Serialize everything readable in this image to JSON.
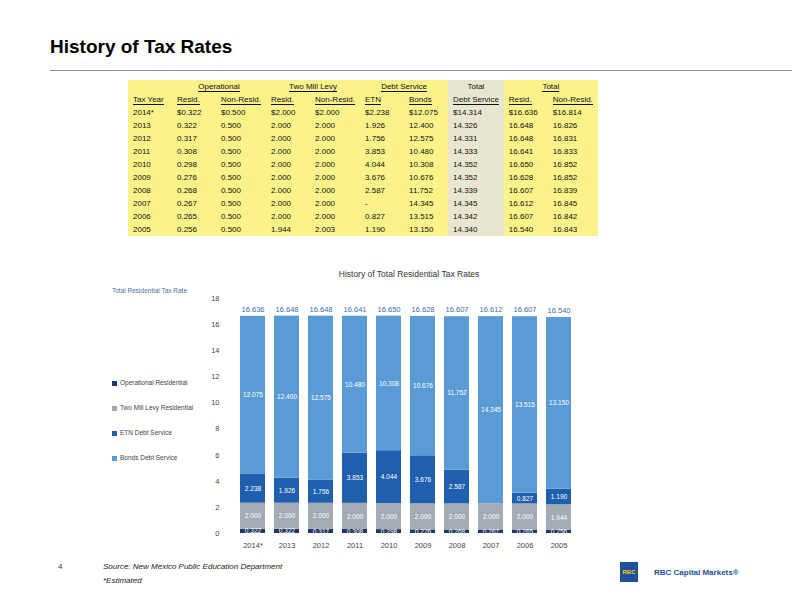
{
  "title": "History of Tax Rates",
  "table": {
    "header_groups": [
      {
        "label": null,
        "span": 1
      },
      {
        "label": "Operational",
        "span": 2
      },
      {
        "label": "Two Mill Levy",
        "span": 2
      },
      {
        "label": "Debt Service",
        "span": 2
      },
      {
        "label": "Total",
        "span": 1
      },
      {
        "label": "Total",
        "span": 2
      }
    ],
    "columns": [
      "Tax Year",
      "Resid.",
      "Non-Resid.",
      "Resid.",
      "Non-Resid.",
      "ETN",
      "Bonds",
      "Debt Service",
      "Resid.",
      "Non-Resid."
    ],
    "rows": [
      [
        "2014*",
        "$0.322",
        "$0.500",
        "$2.000",
        "$2.000",
        "$2.238",
        "$12.075",
        "$14.314",
        "$16.636",
        "$16.814"
      ],
      [
        "2013",
        "0.322",
        "0.500",
        "2.000",
        "2.000",
        "1.926",
        "12.400",
        "14.326",
        "16.648",
        "16.826"
      ],
      [
        "2012",
        "0.317",
        "0.500",
        "2.000",
        "2.000",
        "1.756",
        "12.575",
        "14.331",
        "16.648",
        "16.831"
      ],
      [
        "2011",
        "0.308",
        "0.500",
        "2.000",
        "2.000",
        "3.853",
        "10.480",
        "14.333",
        "16.641",
        "16.833"
      ],
      [
        "2010",
        "0.298",
        "0.500",
        "2.000",
        "2.000",
        "4.044",
        "10.308",
        "14.352",
        "16.650",
        "16.852"
      ],
      [
        "2009",
        "0.276",
        "0.500",
        "2.000",
        "2.000",
        "3.676",
        "10.676",
        "14.352",
        "16.628",
        "16.852"
      ],
      [
        "2008",
        "0.268",
        "0.500",
        "2.000",
        "2.000",
        "2.587",
        "11.752",
        "14.339",
        "16.607",
        "16.839"
      ],
      [
        "2007",
        "0.267",
        "0.500",
        "2.000",
        "2.000",
        "-",
        "14.345",
        "14.345",
        "16.612",
        "16.845"
      ],
      [
        "2006",
        "0.265",
        "0.500",
        "2.000",
        "2.000",
        "0.827",
        "13.515",
        "14.342",
        "16.607",
        "16.842"
      ],
      [
        "2005",
        "0.256",
        "0.500",
        "1.944",
        "2.003",
        "1.190",
        "13.150",
        "14.340",
        "16.540",
        "16.843"
      ]
    ]
  },
  "chart_data": {
    "type": "bar",
    "stacked": true,
    "data_labels": true,
    "grid": false,
    "legend": "left",
    "title": "History of Total Residential Tax Rates",
    "legend_title": "Total Residential Tax Rate",
    "categories": [
      "2014*",
      "2013",
      "2012",
      "2011",
      "2010",
      "2009",
      "2008",
      "2007",
      "2006",
      "2005"
    ],
    "series": [
      {
        "name": "Operational Residential",
        "color": "#1f3864",
        "values": [
          0.322,
          0.322,
          0.317,
          0.308,
          0.298,
          0.276,
          0.268,
          0.267,
          0.265,
          0.256
        ],
        "value_labels": [
          "0.322",
          "0.322",
          "0.317",
          "0.308",
          "0.298",
          "0.276",
          "0.268",
          "0.267",
          "0.265",
          "0.256"
        ]
      },
      {
        "name": "Two Mill Levy Residential",
        "color": "#a3abb5",
        "values": [
          2,
          2,
          2,
          2,
          2,
          2,
          2,
          2,
          2,
          1.944
        ],
        "value_labels": [
          "2.000",
          "2.000",
          "2.000",
          "2.000",
          "2.000",
          "2.000",
          "2.000",
          "2.000",
          "2.000",
          "1.944"
        ]
      },
      {
        "name": "ETN Debt Service",
        "color": "#1f5fae",
        "values": [
          2.238,
          1.926,
          1.756,
          3.853,
          4.044,
          3.676,
          2.587,
          null,
          0.827,
          1.19
        ],
        "value_labels": [
          "2.238",
          "1.926",
          "1.756",
          "3.853",
          "4.044",
          "3.676",
          "2.587",
          null,
          "0.827",
          "1.190"
        ]
      },
      {
        "name": "Bonds Debt Service",
        "color": "#5b9bd5",
        "values": [
          12.075,
          12.4,
          12.575,
          10.48,
          10.308,
          10.676,
          11.752,
          14.345,
          13.515,
          13.15
        ],
        "value_labels": [
          "12.075",
          "12.400",
          "12.575",
          "10.480",
          "10.308",
          "10.676",
          "11.752",
          "14.345",
          "13.515",
          "13.150"
        ]
      }
    ],
    "totals": [
      16.636,
      16.648,
      16.648,
      16.641,
      16.65,
      16.628,
      16.607,
      16.612,
      16.607,
      16.54
    ],
    "total_labels": [
      "16.636",
      "16.648",
      "16.648",
      "16.641",
      "16.650",
      "16.628",
      "16.607",
      "16.612",
      "16.607",
      "16.540"
    ],
    "ylim": [
      0,
      18
    ],
    "yticks": [
      0,
      2,
      4,
      6,
      8,
      10,
      12,
      14,
      16,
      18
    ]
  },
  "footer": {
    "page": "4",
    "source": "Source: New Mexico Public Education Department",
    "note": "*Estimated",
    "logo_mark": "RBC",
    "logo_text": "RBC Capital Markets®"
  }
}
